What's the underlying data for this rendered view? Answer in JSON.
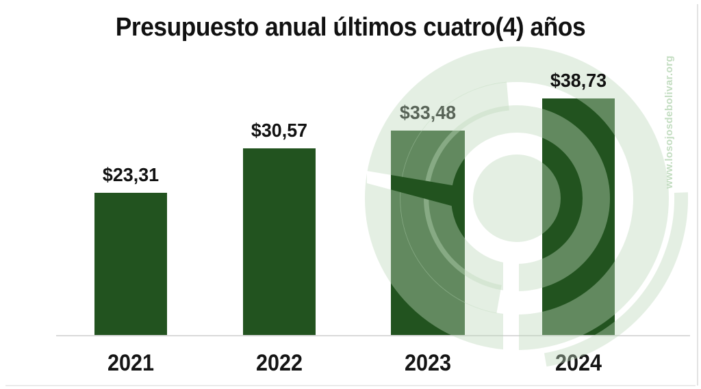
{
  "title": "Presupuesto anual últimos cuatro(4) años",
  "watermark": {
    "website": "www.losojosdebolivar.org",
    "logo": "los-ojos-de-bolivar-circular-logo"
  },
  "colors": {
    "bar": "#22531f",
    "watermark_overlay": "rgba(189,216,187,0.41)",
    "watermark_text": "#c3ddc1",
    "title_text": "#111111",
    "axis_line": "#d9d9d9"
  },
  "chart_data": {
    "type": "bar",
    "title": "Presupuesto anual últimos cuatro(4) años",
    "categories": [
      "2021",
      "2022",
      "2023",
      "2024"
    ],
    "values": [
      23.31,
      30.57,
      33.48,
      38.73
    ],
    "value_labels": [
      "$23,31",
      "$30,57",
      "$33,48",
      "$38,73"
    ],
    "series_name": "Presupuesto anual",
    "ylim": [
      0,
      43
    ],
    "grid": false,
    "legend": false,
    "bar_color": "#22531f",
    "value_label_position": "above"
  }
}
